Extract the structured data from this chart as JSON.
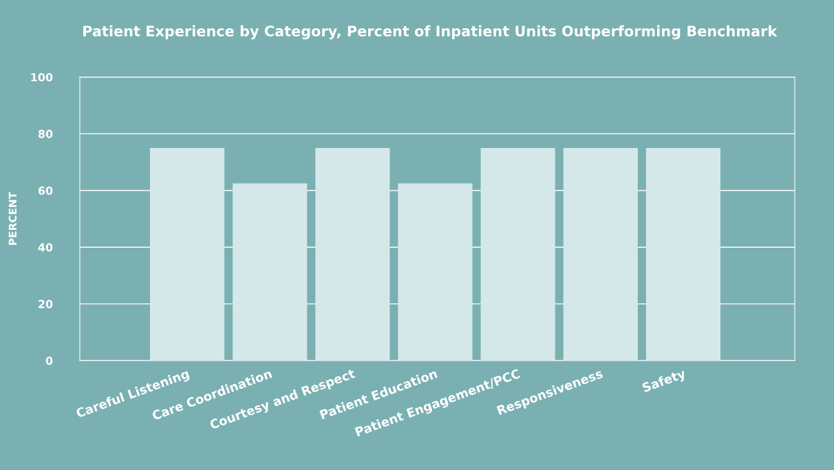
{
  "chart_data": {
    "type": "bar",
    "title": "Patient Experience by Category, Percent of Inpatient Units Outperforming Benchmark",
    "ylabel": "PERCENT",
    "categories": [
      "Careful Listening",
      "Care Coordination",
      "Courtesy and Respect",
      "Patient Education",
      "Patient Engagement/PCC",
      "Responsiveness",
      "Safety"
    ],
    "values": [
      75,
      62.5,
      75,
      62.5,
      75,
      75,
      75
    ],
    "color": "#d4e8ea",
    "ylim": [
      0,
      100
    ],
    "yticks": [
      0,
      20,
      40,
      60,
      80,
      100
    ],
    "grid": "y"
  }
}
